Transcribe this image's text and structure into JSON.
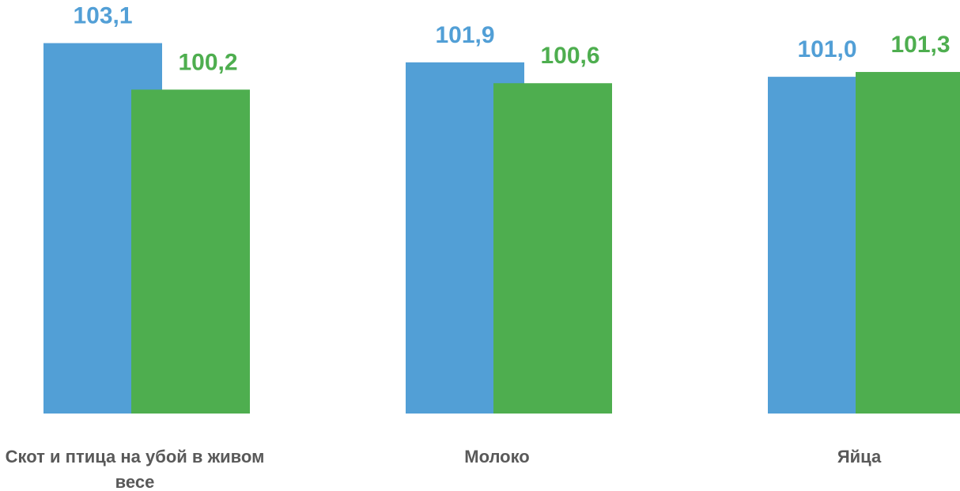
{
  "chart_data": {
    "type": "bar",
    "categories": [
      "Скот и птица на убой в живом весе",
      "Молоко",
      "Яйца"
    ],
    "series": [
      {
        "color": "#529fd6",
        "values": [
          103.1,
          101.9,
          101.0
        ],
        "value_labels": [
          "103,1",
          "101,9",
          "101,0"
        ]
      },
      {
        "color": "#4eae4f",
        "values": [
          100.2,
          100.6,
          101.3
        ],
        "value_labels": [
          "100,2",
          "100,6",
          "101,3"
        ]
      }
    ],
    "ylim": [
      80,
      105
    ]
  }
}
